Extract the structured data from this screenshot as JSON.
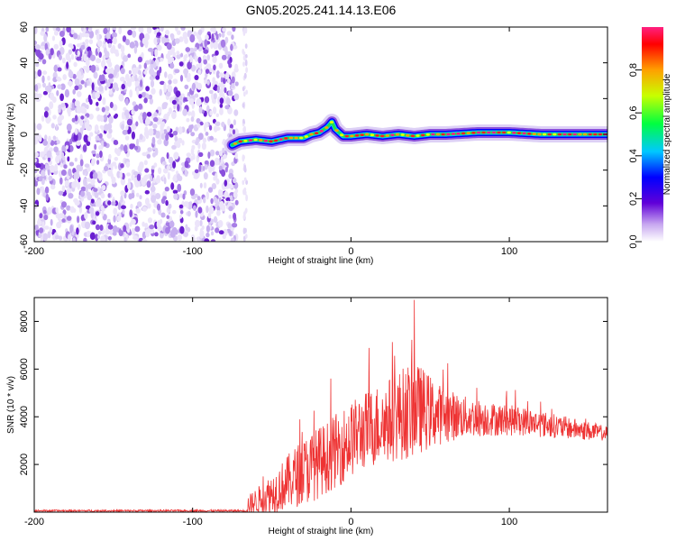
{
  "title": "GN05.2025.241.14.13.E06",
  "chart_data": [
    {
      "type": "heatmap",
      "xlabel": "Height of straight line (km)",
      "ylabel": "Frequency (Hz)",
      "xlim": [
        -200,
        162
      ],
      "ylim": [
        -60,
        60
      ],
      "xticks": [
        -200,
        -100,
        0,
        100
      ],
      "xtick_labels": [
        "-200",
        "-100",
        "0",
        "100"
      ],
      "yticks": [
        60,
        40,
        20,
        0,
        -20,
        -40,
        -60
      ],
      "ytick_labels": [
        "60",
        "40",
        "20",
        "0",
        "-20",
        "-40",
        "-60"
      ],
      "noise_region_x": [
        -200,
        -72
      ],
      "signal_ridge": {
        "x": [
          -75,
          -70,
          -60,
          -50,
          -40,
          -30,
          -25,
          -20,
          -15,
          -12,
          -10,
          -5,
          0,
          10,
          20,
          30,
          40,
          50,
          60,
          80,
          100,
          120,
          140,
          162
        ],
        "freq": [
          -6,
          -4,
          -3,
          -4,
          -2,
          -2,
          0,
          1,
          4,
          7,
          3,
          -1,
          -1,
          0,
          -1,
          0,
          -1,
          0,
          0,
          1,
          1,
          0,
          0,
          0
        ]
      },
      "colorbar": {
        "label": "Normalized spectral amplitude",
        "range": [
          0,
          1
        ],
        "ticks": [
          0.0,
          0.2,
          0.4,
          0.6,
          0.8
        ],
        "tick_labels": [
          "0.0",
          "0.2",
          "0.4",
          "0.6",
          "0.8"
        ]
      }
    },
    {
      "type": "line",
      "xlabel": "Height of straight line (km)",
      "ylabel": "SNR (10 * v/v)",
      "xlim": [
        -200,
        162
      ],
      "ylim": [
        0,
        9000
      ],
      "xticks": [
        -200,
        -100,
        0,
        100
      ],
      "xtick_labels": [
        "-200",
        "-100",
        "0",
        "100"
      ],
      "yticks": [
        2000,
        4000,
        6000,
        8000
      ],
      "ytick_labels": [
        "2000",
        "4000",
        "6000",
        "8000"
      ],
      "line_color": "#ee3333",
      "envelope": {
        "x": [
          -200,
          -150,
          -100,
          -66,
          -65,
          -55,
          -45,
          -35,
          -25,
          -15,
          -5,
          5,
          15,
          25,
          35,
          40,
          45,
          55,
          70,
          90,
          110,
          130,
          150,
          162
        ],
        "mean": [
          60,
          60,
          60,
          60,
          300,
          600,
          1000,
          1500,
          1900,
          2300,
          2800,
          3300,
          3600,
          3900,
          4200,
          4300,
          4300,
          4100,
          4000,
          3900,
          3800,
          3600,
          3400,
          3300
        ],
        "amp": [
          40,
          40,
          40,
          40,
          400,
          700,
          1000,
          1300,
          1500,
          1500,
          1600,
          1600,
          1700,
          1800,
          2000,
          2000,
          1800,
          1300,
          900,
          700,
          600,
          500,
          400,
          300
        ]
      },
      "peak": {
        "x": 40,
        "y": 8900
      }
    }
  ]
}
